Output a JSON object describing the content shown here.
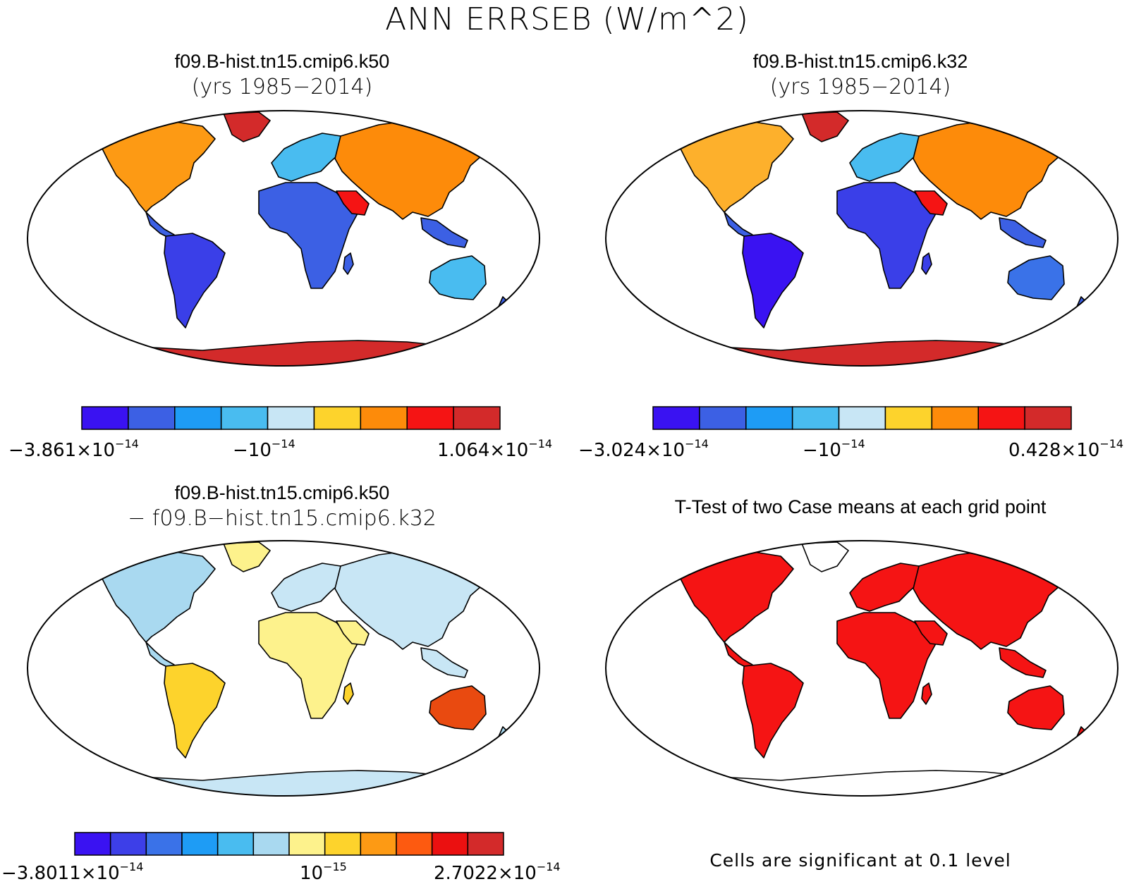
{
  "title": "ANN ERRSEB (W/m^2)",
  "panels": [
    {
      "title": "f09.B-hist.tn15.cmip6.k50",
      "subtitle": "(yrs 1985−2014)",
      "colorbar": {
        "colors": [
          "#3a12f2",
          "#3c60e4",
          "#1e9cf5",
          "#49bcf0",
          "#c8e6f5",
          "#fdd32c",
          "#fd8b0a",
          "#f51414",
          "#d32a2a"
        ],
        "ticks": [
          {
            "mantissa": "−3.861×10",
            "exponent": "−14"
          },
          {
            "mantissa": "−10",
            "exponent": "−14"
          },
          {
            "mantissa": "1.064×10",
            "exponent": "−14"
          }
        ]
      }
    },
    {
      "title": "f09.B-hist.tn15.cmip6.k32",
      "subtitle": "(yrs 1985−2014)",
      "colorbar": {
        "colors": [
          "#3a12f2",
          "#3c60e4",
          "#1e9cf5",
          "#49bcf0",
          "#c8e6f5",
          "#fdd32c",
          "#fd8b0a",
          "#f51414",
          "#d32a2a"
        ],
        "ticks": [
          {
            "mantissa": "−3.024×10",
            "exponent": "−14"
          },
          {
            "mantissa": "−10",
            "exponent": "−14"
          },
          {
            "mantissa": "0.428×10",
            "exponent": "−14"
          }
        ]
      }
    },
    {
      "title": "f09.B-hist.tn15.cmip6.k50",
      "subtitle": "− f09.B−hist.tn15.cmip6.k32",
      "colorbar": {
        "colors": [
          "#3a12f2",
          "#3d3fe8",
          "#3a72e8",
          "#1e9cf5",
          "#49bcf0",
          "#a9d9f0",
          "#fdf28c",
          "#fdd32c",
          "#fd9a14",
          "#fd5a10",
          "#eb1010",
          "#d32a2a"
        ],
        "ticks": [
          {
            "mantissa": "−3.8011×10",
            "exponent": "−14"
          },
          {
            "mantissa": "10",
            "exponent": "−15"
          },
          {
            "mantissa": "2.7022×10",
            "exponent": "−14"
          }
        ]
      }
    },
    {
      "title": "T-Test of two Case means at each grid point",
      "footnote": "Cells are significant at 0.1 level"
    }
  ]
}
